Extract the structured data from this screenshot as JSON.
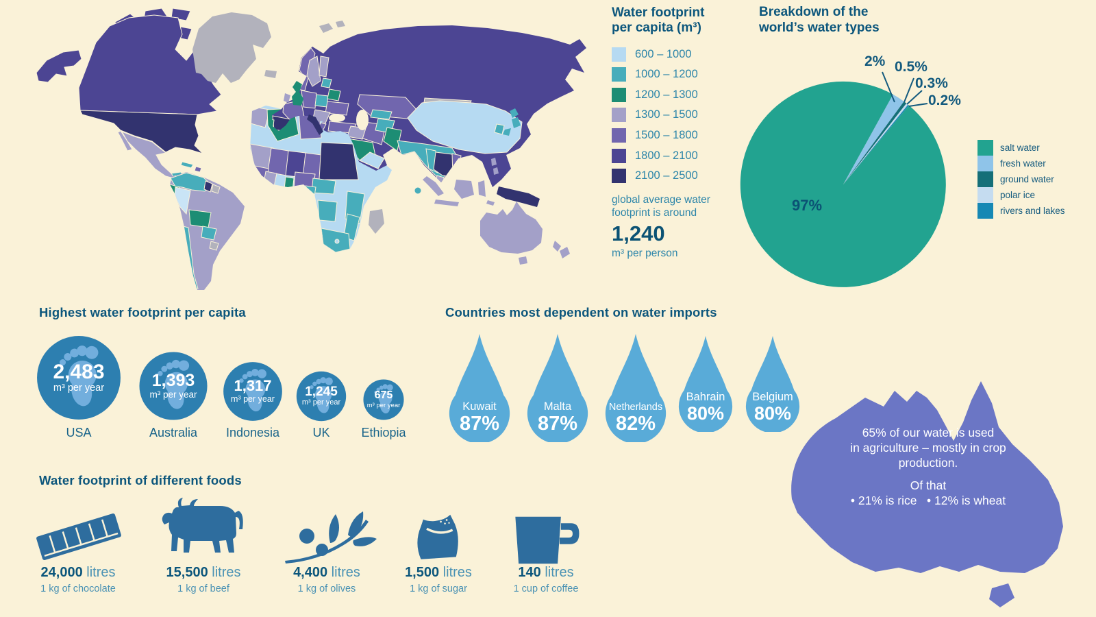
{
  "colors": {
    "background": "#faf2d8",
    "heading_text": "#0c567c",
    "label_text": "#2c85a9",
    "big_number_text": "#0b5274",
    "circle_blue": "#2d7fb0",
    "foot_glyph": "#72aedd",
    "drop_blue": "#59abd8",
    "australia_purple": "#6b76c5",
    "food_icon_blue": "#2e6d9e",
    "white": "#ffffff"
  },
  "palette": {
    "r600": "#b6daf2",
    "r600_light": "#c9e4f6",
    "r1000": "#47adbb",
    "r1200": "#1d8d74",
    "r1300": "#a3a0c8",
    "r1500": "#7166ae",
    "r1800": "#4c4593",
    "r2100": "#32336f",
    "nodata": "#b2b2bc"
  },
  "map_legend": {
    "title_1": "Water footprint",
    "title_2": "per capita (m³)",
    "classes": [
      {
        "range": "600 – 1000",
        "color": "#b6daf2"
      },
      {
        "range": "1000 – 1200",
        "color": "#47adbb"
      },
      {
        "range": "1200 – 1300",
        "color": "#1d8d74"
      },
      {
        "range": "1300 – 1500",
        "color": "#a3a0c8"
      },
      {
        "range": "1500 – 1800",
        "color": "#7166ae"
      },
      {
        "range": "1800 – 2100",
        "color": "#4c4593"
      },
      {
        "range": "2100 – 2500",
        "color": "#32336f"
      }
    ],
    "note_1": "global average water",
    "note_2": "footprint is around",
    "average": "1,240",
    "average_unit": "m³ per person"
  },
  "pie": {
    "title_1": "Breakdown of the",
    "title_2": "world’s water types",
    "center_label": "97%",
    "callouts": [
      "2%",
      "0.5%",
      "0.3%",
      "0.2%"
    ],
    "slices": [
      {
        "label": "salt water",
        "value": 97,
        "color": "#22a390"
      },
      {
        "label": "fresh water",
        "value": 2,
        "color": "#8fc4e9"
      },
      {
        "label": "ground water",
        "value": 0.5,
        "color": "#156f78"
      },
      {
        "label": "polar ice",
        "value": 0.3,
        "color": "#c5dcf0"
      },
      {
        "label": "rivers and lakes",
        "value": 0.2,
        "color": "#1688b4"
      }
    ]
  },
  "footprints": {
    "heading": "Highest water footprint per capita",
    "unit": "m³ per year",
    "items": [
      {
        "country": "USA",
        "value": "2,483"
      },
      {
        "country": "Australia",
        "value": "1,393"
      },
      {
        "country": "Indonesia",
        "value": "1,317"
      },
      {
        "country": "UK",
        "value": "1,245"
      },
      {
        "country": "Ethiopia",
        "value": "675"
      }
    ]
  },
  "imports": {
    "heading": "Countries most dependent on water imports",
    "items": [
      {
        "country": "Kuwait",
        "pct": "87%"
      },
      {
        "country": "Malta",
        "pct": "87%"
      },
      {
        "country": "Netherlands",
        "pct": "82%"
      },
      {
        "country": "Bahrain",
        "pct": "80%"
      },
      {
        "country": "Belgium",
        "pct": "80%"
      }
    ]
  },
  "australia_fact": {
    "line_1": "65% of our water is used",
    "line_2": "in agriculture – mostly in crop",
    "line_3": "production.",
    "line_4": "Of that",
    "bullet_1": "• 21% is rice",
    "bullet_2": "• 12% is wheat"
  },
  "foods": {
    "heading": "Water footprint of different foods",
    "items": [
      {
        "value": "24,000",
        "unit": " litres",
        "caption": "1 kg of chocolate",
        "icon": "chocolate-bar-icon"
      },
      {
        "value": "15,500",
        "unit": " litres",
        "caption": "1 kg of beef",
        "icon": "cow-icon"
      },
      {
        "value": "4,400",
        "unit": " litres",
        "caption": "1 kg of olives",
        "icon": "olive-branch-icon"
      },
      {
        "value": "1,500",
        "unit": " litres",
        "caption": "1 kg of sugar",
        "icon": "sugar-sack-icon"
      },
      {
        "value": "140",
        "unit": " litres",
        "caption": "1 cup of coffee",
        "icon": "coffee-mug-icon"
      }
    ]
  },
  "chart_data": [
    {
      "type": "heatmap",
      "subtype": "choropleth-world-map",
      "title": "Water footprint per capita (m³)",
      "legend_position": "right",
      "classes": [
        "600 – 1000",
        "1000 – 1200",
        "1200 – 1300",
        "1300 – 1500",
        "1500 – 1800",
        "1800 – 2100",
        "2100 – 2500"
      ],
      "class_colors": [
        "#b6daf2",
        "#47adbb",
        "#1d8d74",
        "#a3a0c8",
        "#7166ae",
        "#4c4593",
        "#32336f"
      ],
      "annotation": "global average water footprint is around 1,240 m³ per person",
      "sample_values": {
        "USA": "2100 – 2500",
        "Canada": "1800 – 2100",
        "Russia": "1800 – 2100",
        "China": "600 – 1000",
        "India": "1000 – 1200",
        "Brazil": "1300 – 1500",
        "Australia": "1300 – 1500",
        "Greenland": "no data",
        "Spain": "2100 – 2500",
        "UK": "1200 – 1300",
        "Algeria": "1200 – 1300",
        "Sudan": "2100 – 2500",
        "Saudi Arabia": "1200 – 1300",
        "Mexico": "1300 – 1500"
      }
    },
    {
      "type": "pie",
      "title": "Breakdown of the world's water types",
      "categories": [
        "salt water",
        "fresh water",
        "ground water",
        "polar ice",
        "rivers and lakes"
      ],
      "values": [
        97,
        2,
        0.5,
        0.3,
        0.2
      ],
      "unit": "%",
      "legend_position": "right"
    },
    {
      "type": "bar",
      "subtype": "proportional-circles",
      "title": "Highest water footprint per capita",
      "categories": [
        "USA",
        "Australia",
        "Indonesia",
        "UK",
        "Ethiopia"
      ],
      "values": [
        2483,
        1393,
        1317,
        1245,
        675
      ],
      "ylabel": "m³ per year"
    },
    {
      "type": "bar",
      "subtype": "water-drop-pictogram",
      "title": "Countries most dependent on water imports",
      "categories": [
        "Kuwait",
        "Malta",
        "Netherlands",
        "Bahrain",
        "Belgium"
      ],
      "values": [
        87,
        87,
        82,
        80,
        80
      ],
      "unit": "%"
    },
    {
      "type": "bar",
      "subtype": "icon-pictogram",
      "title": "Water footprint of different foods",
      "categories": [
        "1 kg of chocolate",
        "1 kg of beef",
        "1 kg of olives",
        "1 kg of sugar",
        "1 cup of coffee"
      ],
      "values": [
        24000,
        15500,
        4400,
        1500,
        140
      ],
      "unit": "litres"
    },
    {
      "type": "table",
      "subtype": "annotation-australia",
      "title": "Australia water use",
      "values": [
        65,
        21,
        12
      ],
      "notes": [
        "65% of our water is used in agriculture – mostly in crop production.",
        "Of that • 21% is rice • 12% is wheat"
      ]
    }
  ]
}
